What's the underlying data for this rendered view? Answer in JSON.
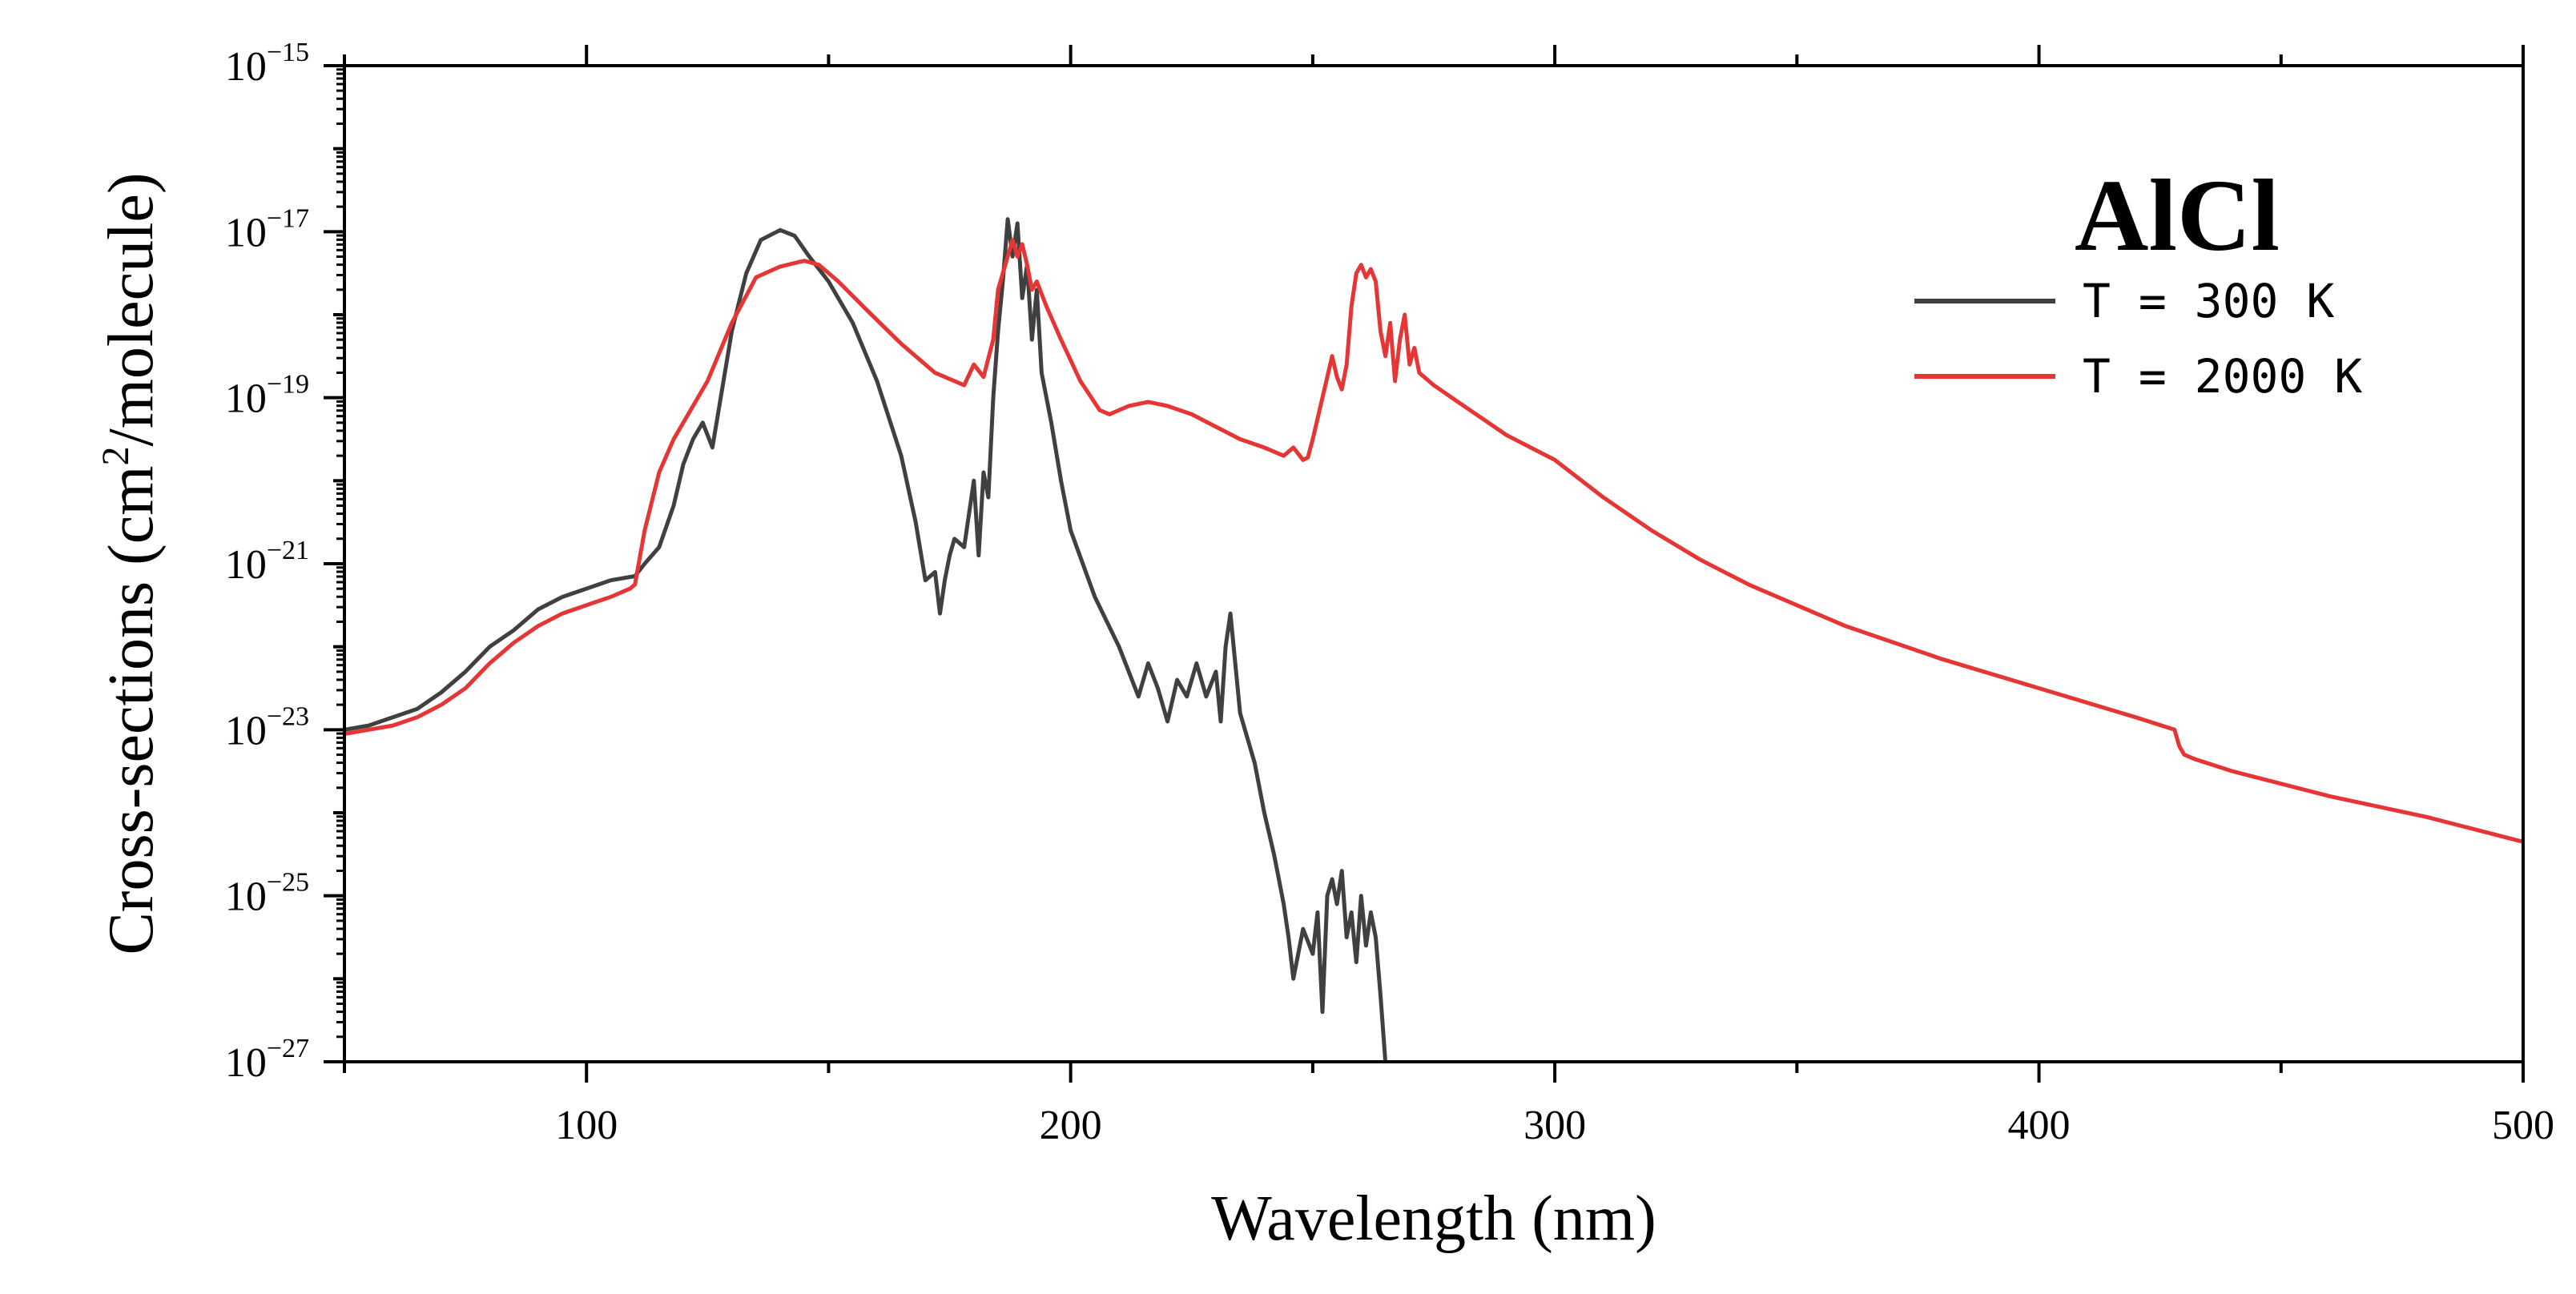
{
  "colors": {
    "series_300K": "#404040",
    "series_2000K": "#e53535",
    "axes": "#000000",
    "background": "#ffffff"
  },
  "chart_data": {
    "type": "line",
    "title": "",
    "annotation": "AlCl",
    "xlabel": "Wavelength (nm)",
    "ylabel": "Cross-sections (cm²/molecule)",
    "ylabel_parts": {
      "pre": "Cross-sections (cm",
      "sup": "2",
      "post": "/molecule)"
    },
    "xscale": "linear",
    "yscale": "log",
    "xlim": [
      50,
      500
    ],
    "ylim": [
      1e-27,
      1e-15
    ],
    "xticks": [
      100,
      200,
      300,
      400,
      500
    ],
    "xtick_labels": [
      "100",
      "200",
      "300",
      "400",
      "500"
    ],
    "yticks": [
      1e-27,
      1e-25,
      1e-23,
      1e-21,
      1e-19,
      1e-17,
      1e-15
    ],
    "ytick_labels": [
      {
        "base": "10",
        "exp": "−27"
      },
      {
        "base": "10",
        "exp": "−25"
      },
      {
        "base": "10",
        "exp": "−23"
      },
      {
        "base": "10",
        "exp": "−21"
      },
      {
        "base": "10",
        "exp": "−19"
      },
      {
        "base": "10",
        "exp": "−17"
      },
      {
        "base": "10",
        "exp": "−15"
      }
    ],
    "grid": false,
    "legend_position": "top-right",
    "series": [
      {
        "name": "T = 300 K",
        "legend_label": "T  = 300 K",
        "color": "#404040",
        "x": [
          50,
          55,
          60,
          65,
          70,
          75,
          80,
          85,
          90,
          95,
          100,
          105,
          110,
          112,
          115,
          118,
          120,
          122,
          124,
          126,
          128,
          130,
          133,
          136,
          140,
          143,
          146,
          150,
          155,
          160,
          165,
          168,
          170,
          172,
          173,
          174,
          175,
          176,
          178,
          180,
          181,
          182,
          183,
          184,
          185,
          186,
          187,
          188,
          189,
          190,
          191,
          192,
          193,
          194,
          196,
          198,
          200,
          205,
          210,
          212,
          214,
          216,
          218,
          220,
          222,
          224,
          226,
          228,
          230,
          231,
          232,
          233,
          235,
          238,
          240,
          242,
          243,
          244,
          245,
          246,
          248,
          250,
          251,
          252,
          253,
          254,
          255,
          256,
          257,
          258,
          259,
          260,
          261,
          262,
          263,
          264,
          265
        ],
        "y": [
          -23.0,
          -22.95,
          -22.85,
          -22.75,
          -22.55,
          -22.3,
          -22.0,
          -21.8,
          -21.55,
          -21.4,
          -21.3,
          -21.2,
          -21.15,
          -21.0,
          -20.8,
          -20.3,
          -19.8,
          -19.5,
          -19.3,
          -19.6,
          -18.9,
          -18.2,
          -17.5,
          -17.1,
          -16.98,
          -17.05,
          -17.3,
          -17.6,
          -18.1,
          -18.8,
          -19.7,
          -20.5,
          -21.2,
          -21.1,
          -21.6,
          -21.2,
          -20.9,
          -20.7,
          -20.8,
          -20.0,
          -20.9,
          -19.9,
          -20.2,
          -19.0,
          -18.2,
          -17.6,
          -16.85,
          -17.3,
          -16.9,
          -17.8,
          -17.4,
          -18.3,
          -17.7,
          -18.7,
          -19.3,
          -20.0,
          -20.6,
          -21.4,
          -22.0,
          -22.3,
          -22.6,
          -22.2,
          -22.5,
          -22.9,
          -22.4,
          -22.6,
          -22.2,
          -22.6,
          -22.3,
          -22.9,
          -22.0,
          -21.6,
          -22.8,
          -23.4,
          -24.0,
          -24.5,
          -24.8,
          -25.1,
          -25.5,
          -26.0,
          -25.4,
          -25.7,
          -25.2,
          -26.4,
          -25.0,
          -24.8,
          -25.1,
          -24.7,
          -25.5,
          -25.2,
          -25.8,
          -25.0,
          -25.6,
          -25.2,
          -25.5,
          -26.2,
          -27.0
        ]
      },
      {
        "name": "T = 2000 K",
        "legend_label": "T  = 2000 K",
        "color": "#e53535",
        "x": [
          50,
          55,
          60,
          65,
          70,
          75,
          80,
          85,
          90,
          95,
          100,
          105,
          109,
          110,
          112,
          115,
          118,
          120,
          125,
          130,
          135,
          140,
          145,
          148,
          152,
          158,
          165,
          172,
          178,
          180,
          182,
          184,
          185,
          186,
          187,
          188,
          189,
          190,
          191,
          192,
          193,
          195,
          198,
          202,
          206,
          208,
          212,
          216,
          220,
          225,
          230,
          235,
          240,
          244,
          246,
          248,
          249,
          250,
          252,
          254,
          255,
          256,
          257,
          258,
          259,
          260,
          261,
          262,
          263,
          264,
          265,
          266,
          267,
          268,
          269,
          270,
          271,
          272,
          275,
          280,
          285,
          290,
          295,
          300,
          310,
          320,
          330,
          340,
          350,
          360,
          380,
          400,
          420,
          428,
          429,
          430,
          432,
          440,
          460,
          480,
          500
        ],
        "y": [
          -23.05,
          -23.0,
          -22.95,
          -22.85,
          -22.7,
          -22.5,
          -22.2,
          -21.95,
          -21.75,
          -21.6,
          -21.5,
          -21.4,
          -21.3,
          -21.25,
          -20.6,
          -19.9,
          -19.5,
          -19.3,
          -18.8,
          -18.1,
          -17.55,
          -17.42,
          -17.35,
          -17.4,
          -17.6,
          -17.95,
          -18.35,
          -18.7,
          -18.85,
          -18.6,
          -18.75,
          -18.3,
          -17.7,
          -17.5,
          -17.3,
          -17.1,
          -17.3,
          -17.15,
          -17.4,
          -17.7,
          -17.6,
          -17.9,
          -18.3,
          -18.8,
          -19.15,
          -19.2,
          -19.1,
          -19.05,
          -19.1,
          -19.2,
          -19.35,
          -19.5,
          -19.6,
          -19.7,
          -19.6,
          -19.75,
          -19.72,
          -19.5,
          -19.0,
          -18.5,
          -18.75,
          -18.9,
          -18.6,
          -17.9,
          -17.5,
          -17.4,
          -17.55,
          -17.45,
          -17.6,
          -18.2,
          -18.5,
          -18.1,
          -18.8,
          -18.3,
          -18.0,
          -18.6,
          -18.4,
          -18.7,
          -18.85,
          -19.05,
          -19.25,
          -19.45,
          -19.6,
          -19.75,
          -20.2,
          -20.6,
          -20.95,
          -21.25,
          -21.5,
          -21.75,
          -22.15,
          -22.5,
          -22.85,
          -23.0,
          -23.2,
          -23.3,
          -23.35,
          -23.5,
          -23.8,
          -24.05,
          -24.35
        ]
      }
    ]
  }
}
